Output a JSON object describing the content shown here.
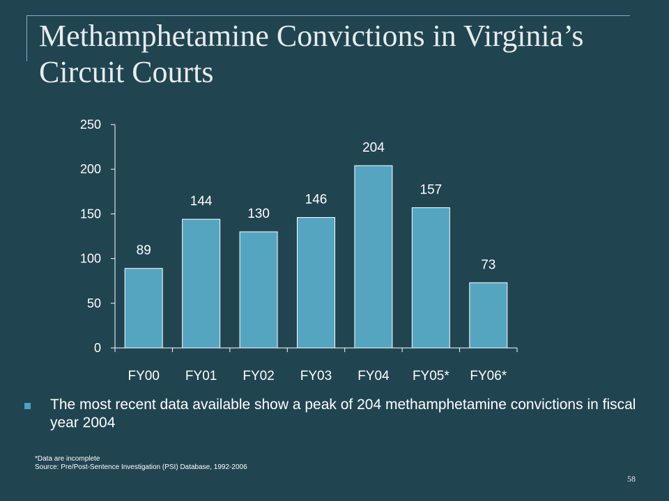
{
  "slide": {
    "title": "Methamphetamine Convictions in Virginia’s Circuit Courts",
    "bullet": "The most recent data available show a peak of 204 methamphetamine convictions in fiscal year 2004",
    "footnote": "*Data are incomplete",
    "source": "Source:  Pre/Post-Sentence Investigation (PSI) Database, 1992-2006",
    "slide_number": "58"
  },
  "colors": {
    "background": "#214451",
    "bar_fill": "#55a5c0",
    "bar_edge": "#ffffff",
    "bullet": "#4aa3c0",
    "text": "#ffffff"
  },
  "chart_data": {
    "type": "bar",
    "categories": [
      "FY00",
      "FY01",
      "FY02",
      "FY03",
      "FY04",
      "FY05*",
      "FY06*"
    ],
    "values": [
      89,
      144,
      130,
      146,
      204,
      157,
      73
    ],
    "data_labels": [
      "89",
      "144",
      "130",
      "146",
      "204",
      "157",
      "73"
    ],
    "y_ticks": [
      0,
      50,
      100,
      150,
      200,
      250
    ],
    "ylim": [
      0,
      250
    ],
    "title": "",
    "xlabel": "",
    "ylabel": "",
    "grid": false,
    "legend": "none"
  }
}
